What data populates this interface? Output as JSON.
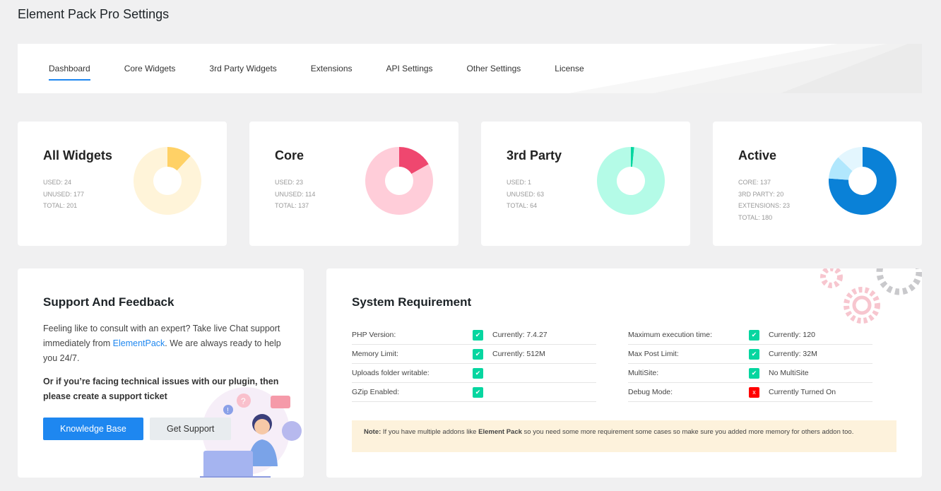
{
  "page_title": "Element Pack Pro Settings",
  "tabs": [
    {
      "label": "Dashboard",
      "active": true
    },
    {
      "label": "Core Widgets"
    },
    {
      "label": "3rd Party Widgets"
    },
    {
      "label": "Extensions"
    },
    {
      "label": "API Settings"
    },
    {
      "label": "Other Settings"
    },
    {
      "label": "License"
    }
  ],
  "stats": [
    {
      "title": "All Widgets",
      "lines": [
        "USED: 24",
        "UNUSED: 177",
        "TOTAL: 201"
      ],
      "chart_data": {
        "type": "pie",
        "values": [
          24,
          177
        ],
        "colors": [
          "#ffd166",
          "#fff4d9"
        ]
      }
    },
    {
      "title": "Core",
      "lines": [
        "USED: 23",
        "UNUSED: 114",
        "TOTAL: 137"
      ],
      "chart_data": {
        "type": "pie",
        "values": [
          23,
          114
        ],
        "colors": [
          "#ef476f",
          "#ffcdd9"
        ]
      }
    },
    {
      "title": "3rd Party",
      "lines": [
        "USED: 1",
        "UNUSED: 63",
        "TOTAL: 64"
      ],
      "chart_data": {
        "type": "pie",
        "values": [
          1,
          63
        ],
        "colors": [
          "#06d6a0",
          "#b4fbe7"
        ]
      }
    },
    {
      "title": "Active",
      "lines": [
        "CORE: 137",
        "3RD PARTY: 20",
        "EXTENSIONS: 23",
        "TOTAL: 180"
      ],
      "chart_data": {
        "type": "pie",
        "values": [
          137,
          20,
          23
        ],
        "colors": [
          "#0a81d7",
          "#b1e7fd",
          "#e3f6fe"
        ]
      }
    }
  ],
  "support": {
    "title": "Support And Feedback",
    "text1_pre": "Feeling like to consult with an expert? Take live Chat support immediately from ",
    "text1_link": "ElementPack",
    "text1_post": ". We are always ready to help you 24/7.",
    "text2": "Or if you’re facing technical issues with our plugin, then please create a support ticket",
    "kb_button": "Knowledge Base",
    "support_button": "Get Support"
  },
  "system": {
    "title": "System Requirement",
    "left": [
      {
        "label": "PHP Version:",
        "ok": true,
        "value": "Currently: 7.4.27"
      },
      {
        "label": "Memory Limit:",
        "ok": true,
        "value": "Currently: 512M"
      },
      {
        "label": "Uploads folder writable:",
        "ok": true,
        "value": ""
      },
      {
        "label": "GZip Enabled:",
        "ok": true,
        "value": ""
      }
    ],
    "right": [
      {
        "label": "Maximum execution time:",
        "ok": true,
        "value": "Currently: 120"
      },
      {
        "label": "Max Post Limit:",
        "ok": true,
        "value": "Currently: 32M"
      },
      {
        "label": "MultiSite:",
        "ok": true,
        "value": "No MultiSite"
      },
      {
        "label": "Debug Mode:",
        "ok": false,
        "value": "Currently Turned On"
      }
    ],
    "note_label": "Note:",
    "note_pre": " If you have multiple addons like ",
    "note_bold": "Element Pack",
    "note_post": " so you need some more requirement some cases so make sure you added more memory for others addon too."
  },
  "colors": {
    "accent": "#1e87f0",
    "ok": "#06d6a0",
    "fail": "#ff0000"
  }
}
